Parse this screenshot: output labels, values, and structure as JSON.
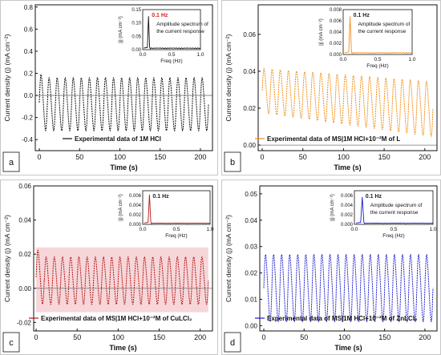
{
  "chart_data": [
    {
      "type": "line",
      "panel_label": "a",
      "xlabel": "Time (s)",
      "ylabel": "Current density (j) (mA cm⁻²)",
      "xlim": [
        -5,
        215
      ],
      "ylim": [
        -0.5,
        0.82
      ],
      "xticks": [
        0,
        50,
        100,
        150,
        200
      ],
      "yticks": [
        -0.4,
        -0.2,
        0.0,
        0.2,
        0.4,
        0.6,
        0.8
      ],
      "ytick_labels": [
        "-0.4",
        "-0.2",
        "0.0",
        "0.2",
        "0.4",
        "0.6",
        "0.8"
      ],
      "reference_line": 0,
      "color": "#111111",
      "fill": null,
      "series": [
        {
          "name": "Experimental data of 1M HCl",
          "x_start": 0,
          "x_end": 210,
          "period_s": 10,
          "max": 0.17,
          "min": -0.33,
          "first_max": 0.2
        }
      ],
      "inset": {
        "xlabel": "Freq (Hz)",
        "ylabel": "|j| (mA cm⁻²)",
        "xlim": [
          0,
          1.0
        ],
        "xticks": [
          0.0,
          0.5,
          1.0
        ],
        "xtick_labels": [
          "0.0",
          "0.5",
          "1.0"
        ],
        "ylim": [
          0,
          0.15
        ],
        "yticks": [
          0.0,
          0.05,
          0.1,
          0.15
        ],
        "ytick_labels": [
          "0.00",
          "0.05",
          "0.10",
          "0.15"
        ],
        "peak_freq": 0.1,
        "peak_value": 0.125,
        "color": "#111111",
        "peak_label": "0.1 Hz",
        "peak_label_color": "#e02020",
        "caption": [
          "Amplitude spectrum of",
          "the current response"
        ]
      }
    },
    {
      "type": "line",
      "panel_label": "b",
      "xlabel": "Time (s)",
      "ylabel": "Current density (j) (mA cm⁻²)",
      "xlim": [
        -5,
        215
      ],
      "ylim": [
        -0.003,
        0.076
      ],
      "xticks": [
        0,
        50,
        100,
        150,
        200
      ],
      "yticks": [
        0.0,
        0.02,
        0.04,
        0.06
      ],
      "ytick_labels": [
        "0.00",
        "0.02",
        "0.04",
        "0.06"
      ],
      "reference_line": 0,
      "color": "#f0901a",
      "fill": null,
      "series": [
        {
          "name": "Experimental data of MS|1M HCl+10⁻²M of L",
          "x_start": 0,
          "x_end": 210,
          "period_s": 10,
          "max_start": 0.042,
          "max_end": 0.035,
          "min_start": 0.017,
          "min_end": 0.004
        }
      ],
      "inset": {
        "xlabel": "Freq (Hz)",
        "ylabel": "|j| (mA cm⁻²)",
        "xlim": [
          0,
          1.0
        ],
        "xticks": [
          0.0,
          0.5,
          1.0
        ],
        "xtick_labels": [
          "0.0",
          "0.5",
          "1.0"
        ],
        "ylim": [
          0,
          0.008
        ],
        "yticks": [
          0.0,
          0.002,
          0.004,
          0.006,
          0.008
        ],
        "ytick_labels": [
          "0.000",
          "0.002",
          "0.004",
          "0.006",
          "0.008"
        ],
        "peak_freq": 0.1,
        "peak_value": 0.0068,
        "color": "#f0901a",
        "peak_label": "0.1 Hz",
        "peak_label_color": "#222222",
        "caption": [
          "Amplitude spectrum of",
          "the current response"
        ]
      }
    },
    {
      "type": "line",
      "panel_label": "c",
      "xlabel": "Time (s)",
      "ylabel": "Current density (j) (mA cm⁻²)",
      "xlim": [
        -3,
        215
      ],
      "ylim": [
        -0.025,
        0.06
      ],
      "xticks": [
        0,
        50,
        100,
        150,
        200
      ],
      "yticks": [
        -0.02,
        0.0,
        0.02,
        0.04,
        0.06
      ],
      "ytick_labels": [
        "-0.02",
        "0.00",
        "0.02",
        "0.04",
        "0.06"
      ],
      "reference_line": 0,
      "color": "#b01818",
      "fill": "#f4c8cc",
      "series": [
        {
          "name": "Experimental data of MS|1M HCl+10⁻²M of CuLCl₂",
          "x_start": 0,
          "x_end": 210,
          "period_s": 10,
          "max": 0.019,
          "min": -0.01,
          "first_max": 0.023
        }
      ],
      "inset": {
        "xlabel": "Freq (Hz)",
        "ylabel": "|j| (mA cm⁻²)",
        "xlim": [
          0,
          1.0
        ],
        "xticks": [
          0.0,
          0.5,
          1.0
        ],
        "xtick_labels": [
          "0.0",
          "0.5",
          "1.0"
        ],
        "ylim": [
          0,
          0.007
        ],
        "yticks": [
          0.0,
          0.002,
          0.004,
          0.006
        ],
        "ytick_labels": [
          "0.000",
          "0.002",
          "0.004",
          "0.006"
        ],
        "peak_freq": 0.1,
        "peak_value": 0.0062,
        "color": "#b01818",
        "peak_label": "0.1 Hz",
        "peak_label_color": "#222222",
        "caption": []
      }
    },
    {
      "type": "line",
      "panel_label": "d",
      "xlabel": "Time (s)",
      "ylabel": "Current density (j) (mA cm⁻²)",
      "xlim": [
        -5,
        215
      ],
      "ylim": [
        -0.002,
        0.053
      ],
      "xticks": [
        0,
        50,
        100,
        150,
        200
      ],
      "yticks": [
        0.0,
        0.01,
        0.02,
        0.03,
        0.04,
        0.05
      ],
      "ytick_labels": [
        "0.00",
        "0.01",
        "0.02",
        "0.03",
        "0.04",
        "0.05"
      ],
      "reference_line": null,
      "color": "#1c1ccc",
      "fill": null,
      "series": [
        {
          "name": "Experimental data of MS|1M HCl+10⁻²M of ZnLCl₂",
          "x_start": 0,
          "x_end": 210,
          "period_s": 10,
          "max": 0.0275,
          "min": 0.001
        }
      ],
      "inset": {
        "xlabel": "Freq (Hz)",
        "ylabel": "|j| (mA cm⁻²)",
        "xlim": [
          0,
          1.0
        ],
        "xticks": [
          0.0,
          0.5,
          1.0
        ],
        "xtick_labels": [
          "0.0",
          "0.5",
          "1.0"
        ],
        "ylim": [
          0,
          0.007
        ],
        "yticks": [
          0.0,
          0.002,
          0.004,
          0.006
        ],
        "ytick_labels": [
          "0.000",
          "0.002",
          "0.004",
          "0.006"
        ],
        "peak_freq": 0.1,
        "peak_value": 0.0057,
        "color": "#1c1ccc",
        "peak_label": "0.1 Hz",
        "peak_label_color": "#222222",
        "caption": [
          "Amplitude spectrum of",
          "the current response"
        ]
      }
    }
  ]
}
